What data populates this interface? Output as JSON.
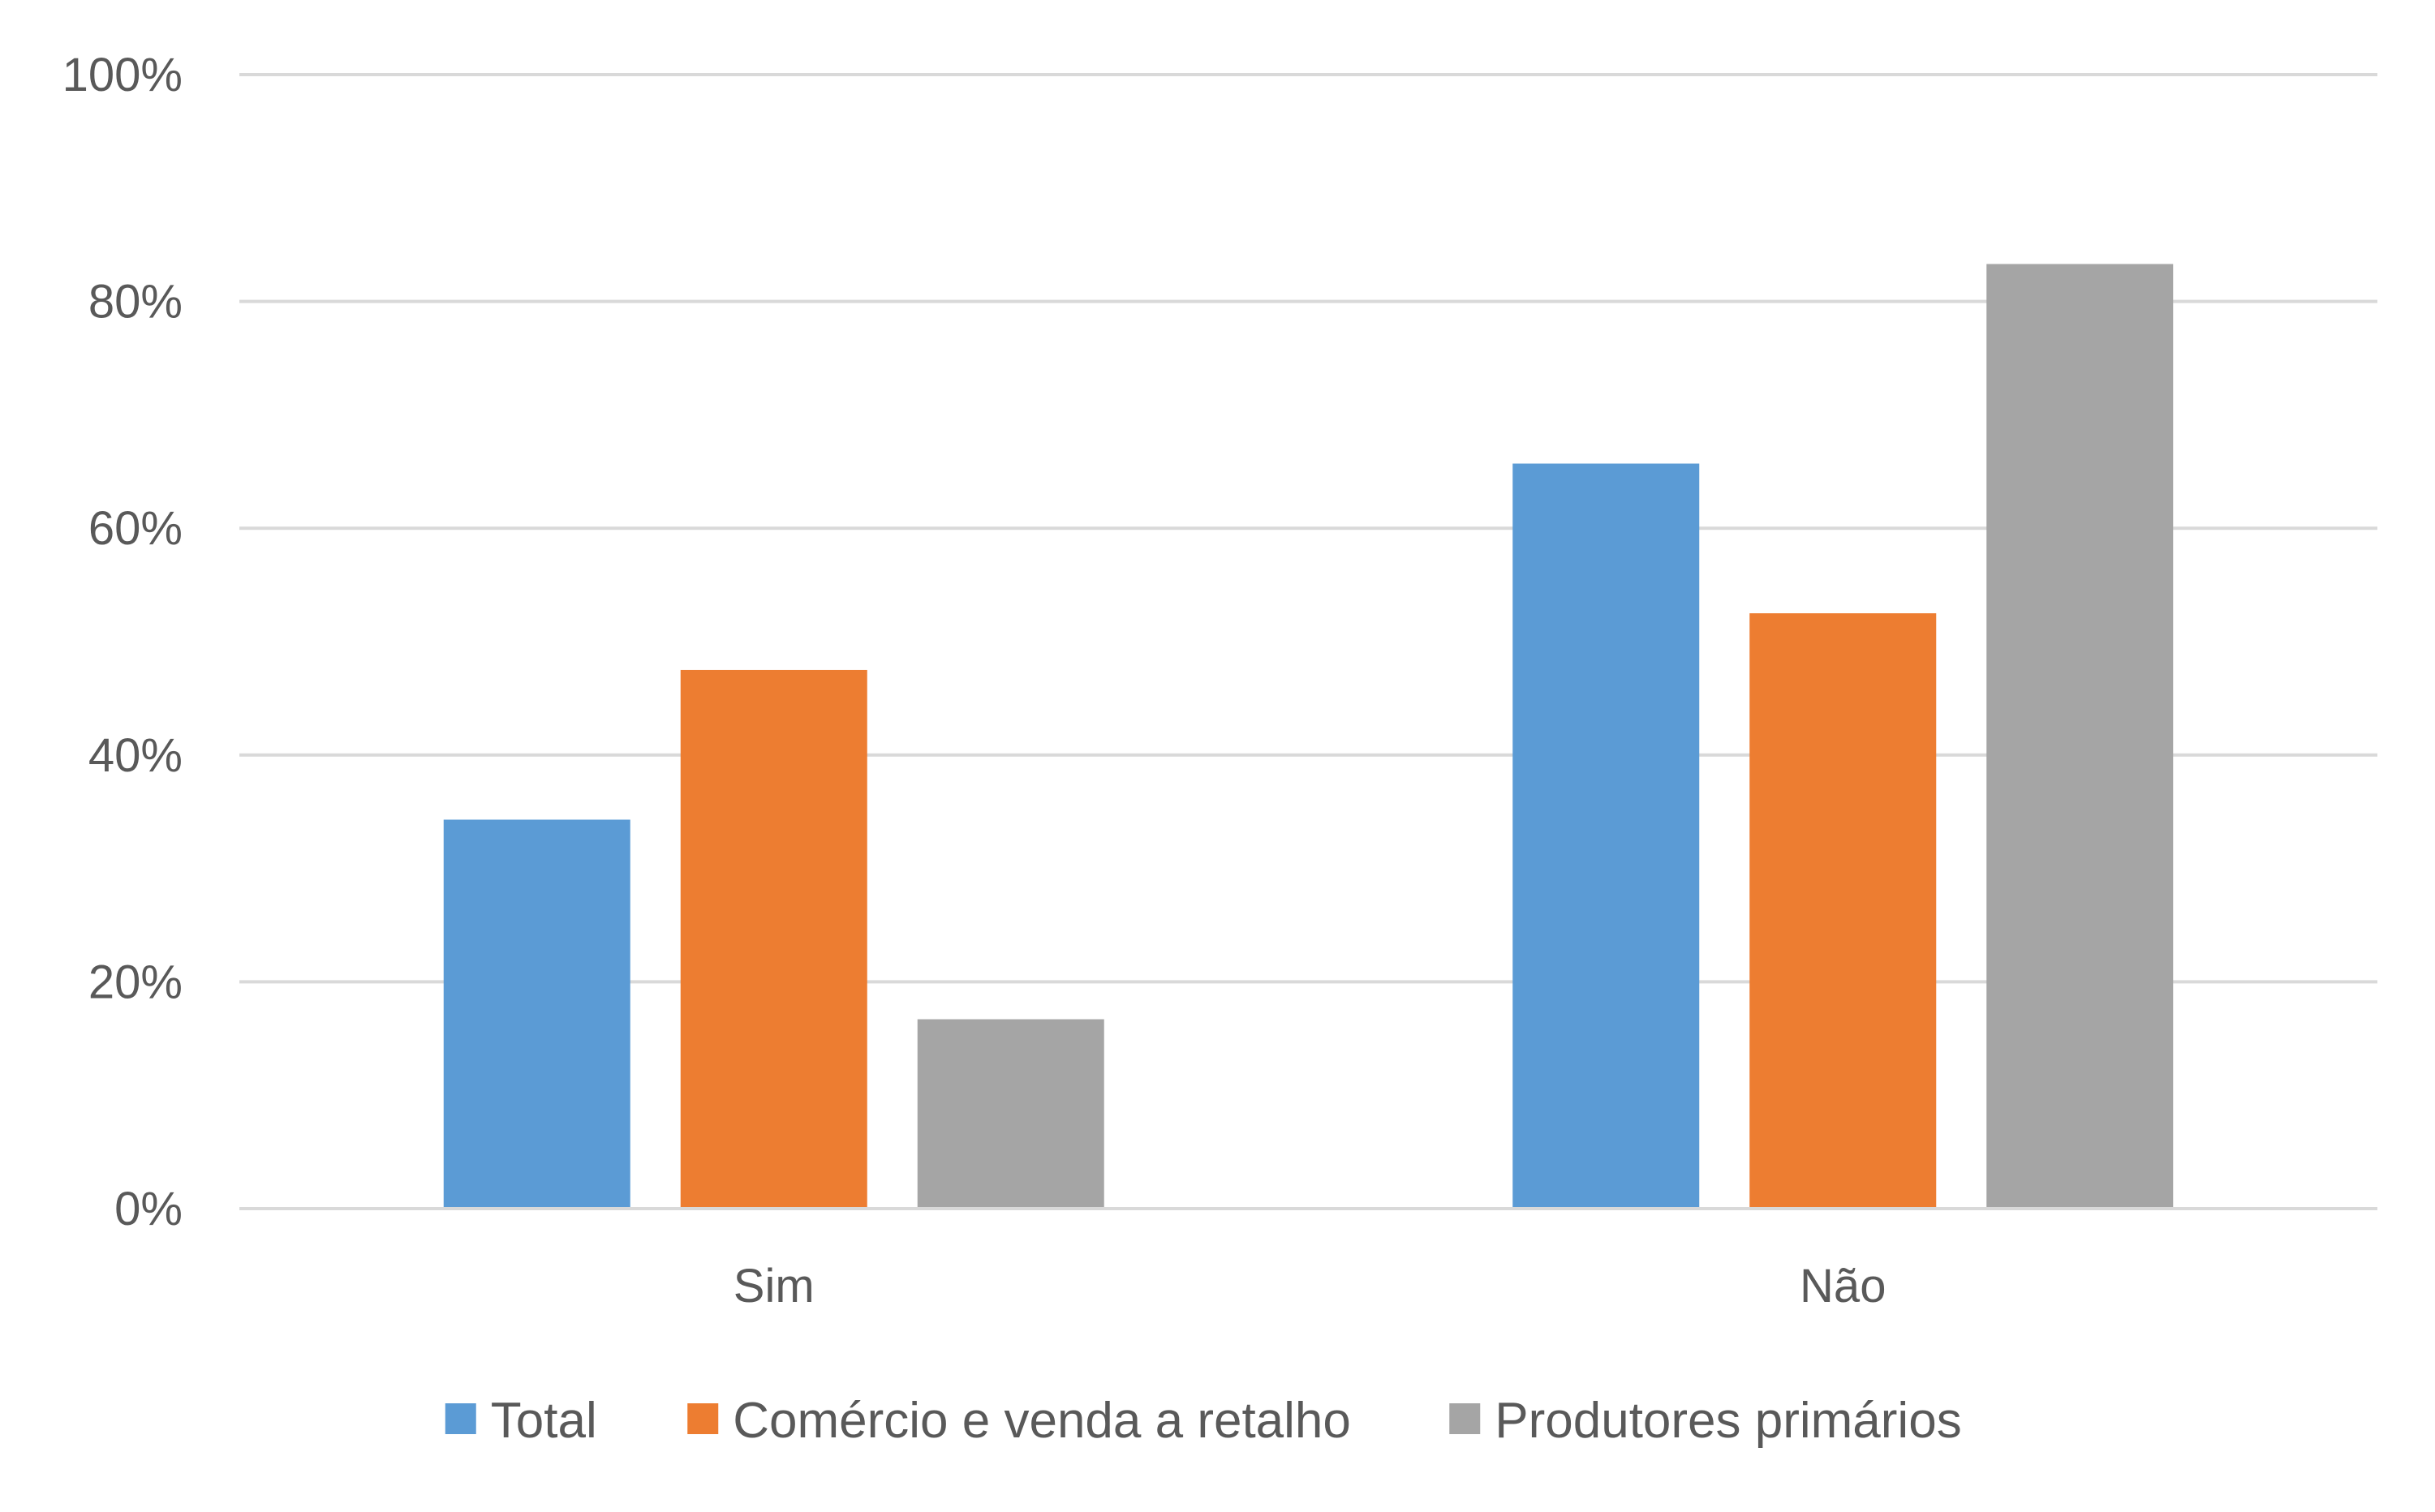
{
  "chart_data": {
    "type": "bar",
    "title": "",
    "xlabel": "",
    "ylabel": "",
    "categories": [
      "Sim",
      "Não"
    ],
    "series": [
      {
        "name": "Total",
        "color": "#5b9bd5",
        "values": [
          34.3,
          65.7
        ]
      },
      {
        "name": "Comércio e venda a retalho",
        "color": "#ed7d31",
        "values": [
          47.5,
          52.5
        ]
      },
      {
        "name": "Produtores primários",
        "color": "#a5a5a5",
        "values": [
          16.7,
          83.3
        ]
      }
    ],
    "ylim": [
      0,
      100
    ],
    "yticks": [
      0,
      20,
      40,
      60,
      80,
      100
    ],
    "ytick_labels": [
      "0%",
      "20%",
      "40%",
      "60%",
      "80%",
      "100%"
    ],
    "grid": true,
    "legend_position": "bottom"
  }
}
